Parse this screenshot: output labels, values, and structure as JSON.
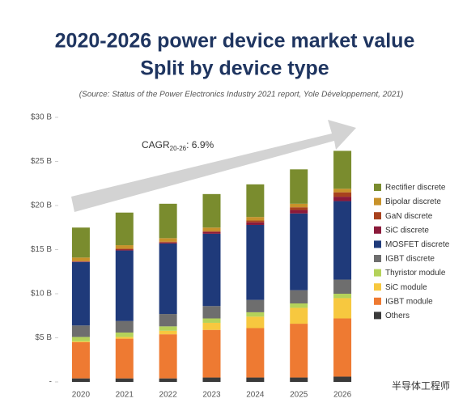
{
  "chart_data": {
    "type": "stacked_bar",
    "title": "2020-2026 power device market value",
    "subtitle": "Split by device type",
    "source": "(Source: Status of the Power Electronics Industry 2021 report, Yole Développement, 2021)",
    "annotation": {
      "main": "CAGR",
      "sub": "20-26",
      "rest": ": 6.9%"
    },
    "categories": [
      "2020",
      "2021",
      "2022",
      "2023",
      "2024",
      "2025",
      "2026"
    ],
    "ylim": [
      0,
      30
    ],
    "yticks": [
      {
        "value": 0,
        "label": "-"
      },
      {
        "value": 5,
        "label": "$5 B"
      },
      {
        "value": 10,
        "label": "$10 B"
      },
      {
        "value": 15,
        "label": "$15 B"
      },
      {
        "value": 20,
        "label": "$20 B"
      },
      {
        "value": 25,
        "label": "$25 B"
      },
      {
        "value": 30,
        "label": "$30 B"
      }
    ],
    "series": [
      {
        "name": "Others",
        "color": "#3a3a3a",
        "values": [
          0.4,
          0.4,
          0.4,
          0.5,
          0.5,
          0.5,
          0.6
        ]
      },
      {
        "name": "IGBT module",
        "color": "#ee7a32",
        "values": [
          4.1,
          4.5,
          5.0,
          5.4,
          5.6,
          6.1,
          6.6
        ]
      },
      {
        "name": "SiC module",
        "color": "#f7c83f",
        "values": [
          0.1,
          0.2,
          0.4,
          0.8,
          1.3,
          1.8,
          2.3
        ]
      },
      {
        "name": "Thyristor module",
        "color": "#b4d25a",
        "values": [
          0.5,
          0.5,
          0.5,
          0.5,
          0.5,
          0.5,
          0.5
        ]
      },
      {
        "name": "IGBT discrete",
        "color": "#6e6e6e",
        "values": [
          1.3,
          1.3,
          1.4,
          1.4,
          1.4,
          1.5,
          1.6
        ]
      },
      {
        "name": "MOSFET discrete",
        "color": "#1f3a7a",
        "values": [
          7.2,
          8.0,
          8.0,
          8.2,
          8.5,
          8.7,
          8.9
        ]
      },
      {
        "name": "SiC discrete",
        "color": "#8b1a3a",
        "values": [
          0.05,
          0.1,
          0.1,
          0.2,
          0.3,
          0.4,
          0.5
        ]
      },
      {
        "name": "GaN discrete",
        "color": "#a8421e",
        "values": [
          0.05,
          0.1,
          0.1,
          0.1,
          0.2,
          0.3,
          0.5
        ]
      },
      {
        "name": "Bipolar discrete",
        "color": "#c8922a",
        "values": [
          0.4,
          0.4,
          0.4,
          0.4,
          0.4,
          0.4,
          0.4
        ]
      },
      {
        "name": "Rectifier discrete",
        "color": "#7a8c2e",
        "values": [
          3.4,
          3.7,
          3.9,
          3.8,
          3.7,
          3.9,
          4.3
        ]
      }
    ]
  },
  "watermark": "半导体工程师"
}
